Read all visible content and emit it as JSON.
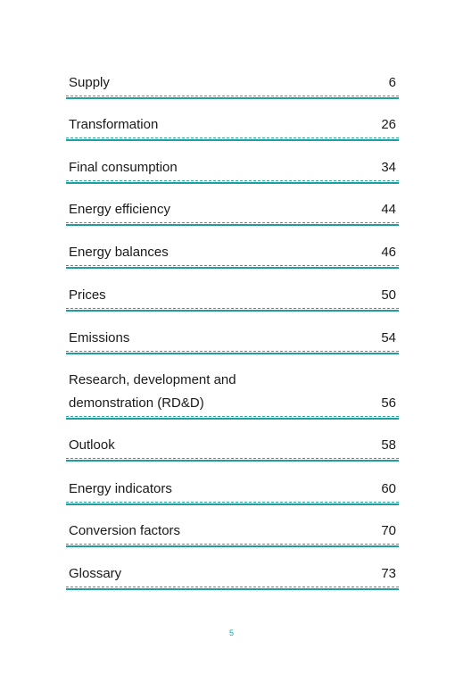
{
  "toc": {
    "entries": [
      {
        "title": "Supply",
        "page": "6"
      },
      {
        "title": "Transformation",
        "page": "26"
      },
      {
        "title": "Final consumption",
        "page": "34"
      },
      {
        "title": "Energy efficiency",
        "page": "44"
      },
      {
        "title": "Energy balances",
        "page": "46"
      },
      {
        "title": "Prices",
        "page": "50"
      },
      {
        "title": "Emissions",
        "page": "54"
      },
      {
        "title": "Research, development and\ndemonstration (RD&D)",
        "page": "56"
      },
      {
        "title": "Outlook",
        "page": "58"
      },
      {
        "title": "Energy indicators",
        "page": "60"
      },
      {
        "title": "Conversion factors",
        "page": "70"
      },
      {
        "title": "Glossary",
        "page": "73"
      }
    ],
    "rule_color": "#1f9ea2"
  },
  "footer": {
    "page_number": "5"
  }
}
